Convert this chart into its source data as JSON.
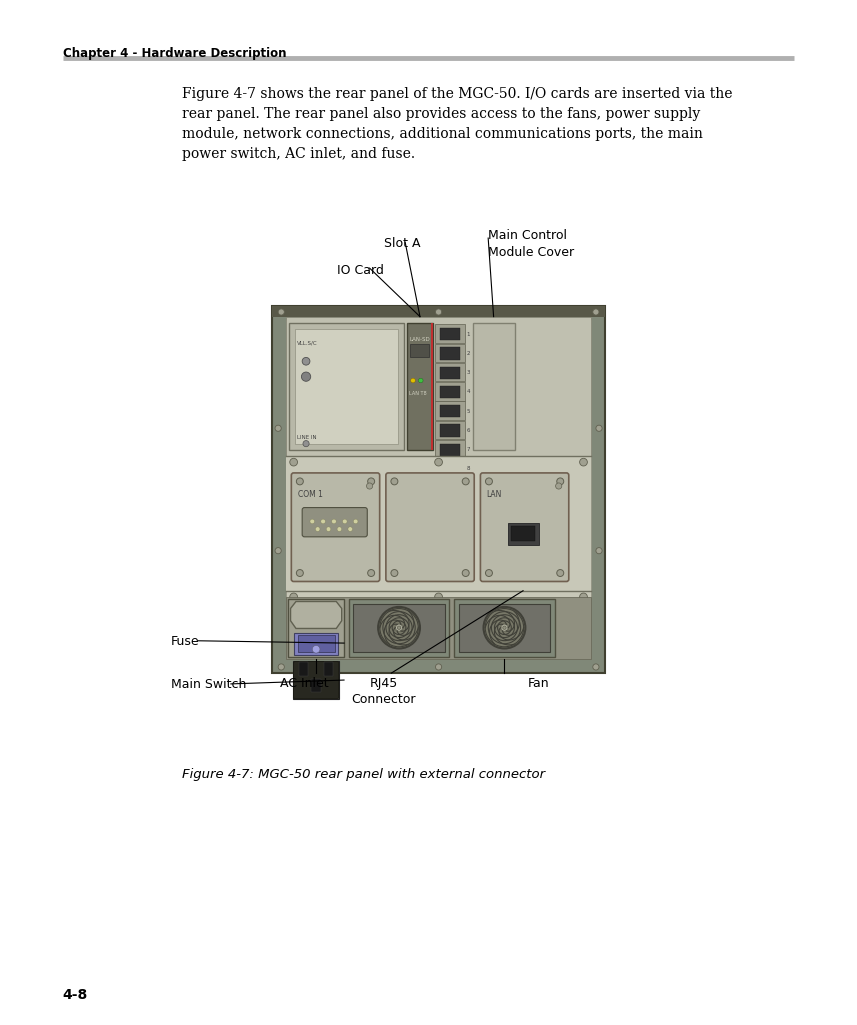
{
  "page_title": "Chapter 4 - Hardware Description",
  "page_number": "4-8",
  "body_text": "Figure 4-7 shows the rear panel of the MGC-50. I/O cards are inserted via the\nrear panel. The rear panel also provides access to the fans, power supply\nmodule, network connections, additional communications ports, the main\npower switch, AC inlet, and fuse.",
  "caption": "Figure 4-7: MGC-50 rear panel with external connector",
  "bg_color": "#ffffff",
  "panel_outer": "#808878",
  "panel_inner": "#c8c8b8",
  "panel_dark_edge": "#585848",
  "card_gray": "#b8b8a8",
  "module_gray": "#c0c0b0",
  "fan_bg": "#909080",
  "fan_ring": "#787868"
}
